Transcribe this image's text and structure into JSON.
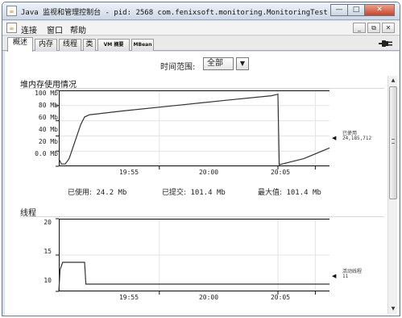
{
  "window": {
    "title": "Java 监视和管理控制台 - pid: 2568 com.fenixsoft.monitoring.MonitoringTest",
    "minimize_icon": "minimize-icon",
    "maximize_icon": "maximize-icon",
    "close_icon": "close-icon",
    "minimize_glyph": "—",
    "maximize_glyph": "□",
    "close_glyph": "✕"
  },
  "menubar": {
    "items": [
      "连接",
      "窗口",
      "帮助"
    ],
    "inner_buttons": [
      "_",
      "⧉",
      "✕"
    ]
  },
  "tabs": [
    {
      "label": "概述",
      "active": true
    },
    {
      "label": "内存",
      "active": false
    },
    {
      "label": "线程",
      "active": false
    },
    {
      "label": "类",
      "active": false
    },
    {
      "label": "VM 摘要",
      "active": false
    },
    {
      "label": "MBean",
      "active": false
    }
  ],
  "time_range": {
    "label": "时间范围:",
    "selected": "全部",
    "arrow": "▼"
  },
  "heap": {
    "title": "堆内存使用情况",
    "stats": {
      "used_label": "已使用:",
      "used_value": "24.2 Mb",
      "committed_label": "已提交:",
      "committed_value": "101.4 Mb",
      "max_label": "最大值:",
      "max_value": "101.4 Mb"
    },
    "legend": {
      "name": "已使用",
      "value": "24,185,712",
      "marker": "◀"
    }
  },
  "threads": {
    "title": "线程",
    "legend": {
      "name": "活动线程",
      "value": "11",
      "marker": "◀"
    }
  },
  "scrollbar": {
    "up": "▲",
    "down": "▼"
  },
  "colors": {
    "series": "#333333",
    "axis": "#111111",
    "grid": "#e3e3e3",
    "title_bar": "#cdd8e6",
    "close_button": "#c9432a"
  },
  "chart_data": [
    {
      "type": "line",
      "title": "堆内存使用情况",
      "unit": "Mb",
      "yticks": [
        "0.0 Mb",
        "20 Mb",
        "40 Mb",
        "60 Mb",
        "80 Mb",
        "100 Mb"
      ],
      "ylim": [
        0,
        100
      ],
      "xticks": [
        "19:55",
        "20:00",
        "20:05"
      ],
      "xlim": [
        1,
        22
      ],
      "grid": true,
      "series": [
        {
          "name": "已使用",
          "x": [
            1.0,
            1.2,
            1.5,
            1.8,
            2.1,
            2.4,
            2.7,
            3.0,
            3.4,
            4.0,
            6.0,
            10.0,
            14.0,
            17.5,
            18.0,
            18.0,
            18.1,
            20.0,
            22.0
          ],
          "y": [
            10,
            3,
            3,
            10,
            25,
            40,
            55,
            65,
            68,
            69,
            73,
            80,
            87,
            93,
            95,
            94,
            2,
            10,
            24.2
          ]
        }
      ]
    },
    {
      "type": "line",
      "title": "线程",
      "yticks": [
        "10",
        "15",
        "20"
      ],
      "ylim": [
        10,
        20
      ],
      "xticks": [
        "19:55",
        "20:00",
        "20:05"
      ],
      "xlim": [
        1,
        22
      ],
      "grid": true,
      "series": [
        {
          "name": "活动线程",
          "x": [
            1.0,
            1.1,
            1.3,
            3.0,
            3.1,
            22.0
          ],
          "y": [
            10,
            13,
            14,
            14,
            11,
            11
          ]
        }
      ]
    }
  ]
}
